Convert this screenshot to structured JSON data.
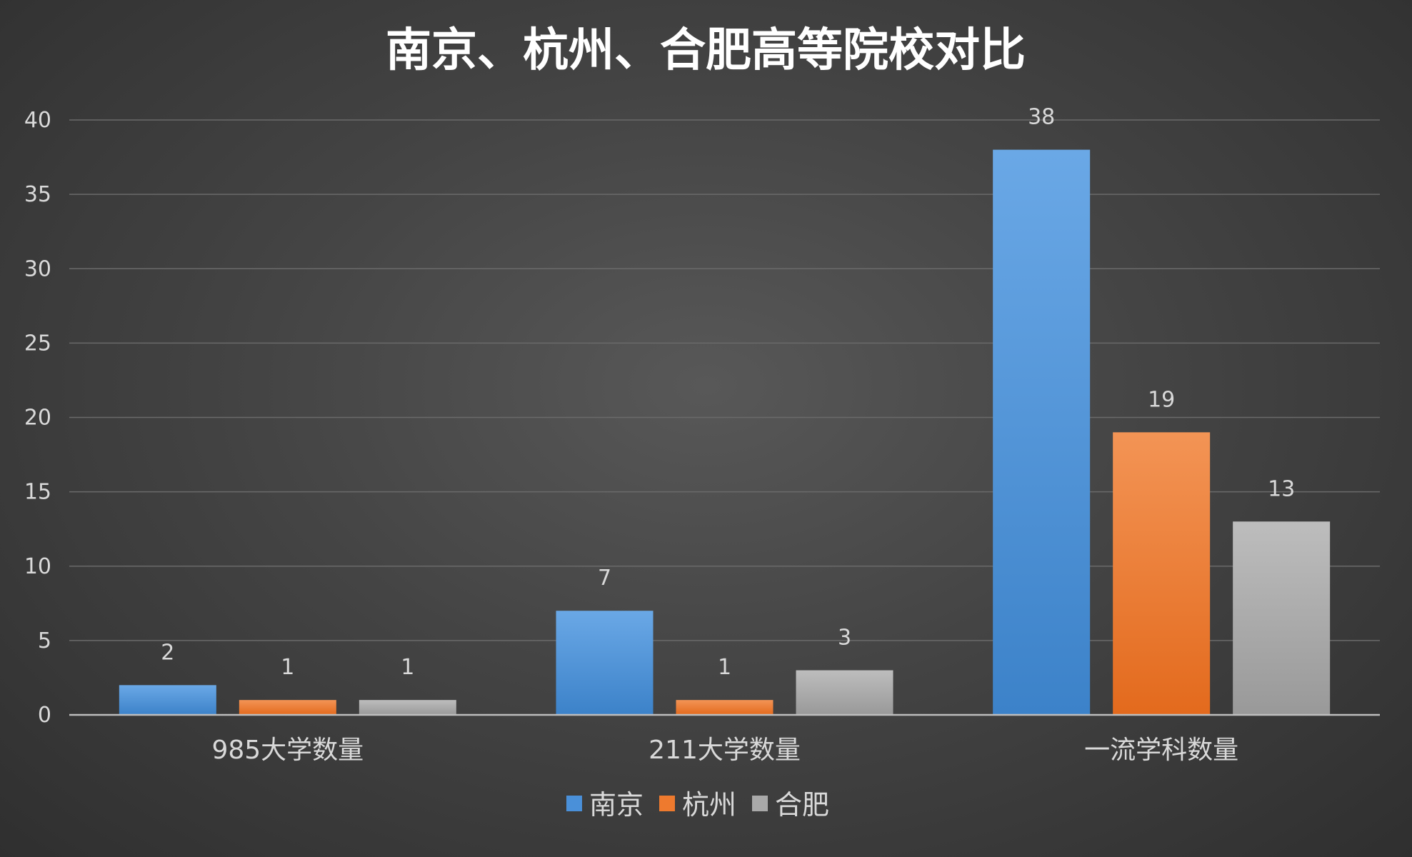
{
  "chart_data": {
    "type": "bar",
    "title": "南京、杭州、合肥高等院校对比",
    "categories": [
      "985大学数量",
      "211大学数量",
      "一流学科数量"
    ],
    "series": [
      {
        "name": "南京",
        "values": [
          2,
          7,
          38
        ],
        "color": "#4a90d9"
      },
      {
        "name": "杭州",
        "values": [
          1,
          1,
          19
        ],
        "color": "#ee7a2e"
      },
      {
        "name": "合肥",
        "values": [
          1,
          3,
          13
        ],
        "color": "#a9a9a9"
      }
    ],
    "ylim": [
      0,
      40
    ],
    "yticks": [
      0,
      5,
      10,
      15,
      20,
      25,
      30,
      35,
      40
    ],
    "grid": true,
    "legend": "bottom-center",
    "xlabel": "",
    "ylabel": ""
  }
}
